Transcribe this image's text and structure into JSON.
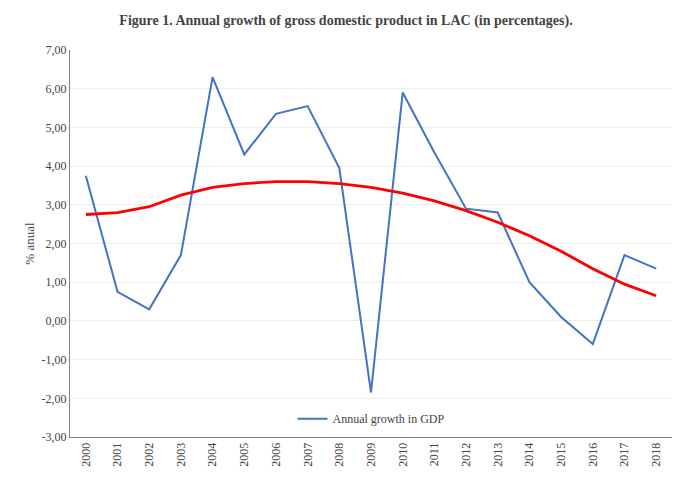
{
  "chart_data": {
    "type": "line",
    "title": "Figure 1. Annual growth of gross domestic product in LAC (in percentages).",
    "y_label": "% anual",
    "x": [
      2000,
      2001,
      2002,
      2003,
      2004,
      2005,
      2006,
      2007,
      2008,
      2009,
      2010,
      2011,
      2012,
      2013,
      2014,
      2015,
      2016,
      2017,
      2018
    ],
    "series": [
      {
        "name": "Annual growth in GDP",
        "color": "#4472C4",
        "values": [
          3.75,
          0.75,
          0.3,
          1.7,
          6.3,
          4.3,
          5.35,
          5.55,
          3.95,
          -1.85,
          5.9,
          4.35,
          2.9,
          2.8,
          1.0,
          0.1,
          -0.6,
          1.7,
          1.35
        ]
      },
      {
        "color": "#FF0000",
        "values": [
          2.75,
          2.8,
          2.95,
          3.25,
          3.45,
          3.55,
          3.6,
          3.6,
          3.55,
          3.45,
          3.3,
          3.1,
          2.85,
          2.55,
          2.2,
          1.8,
          1.35,
          0.95,
          0.65
        ]
      }
    ],
    "xlim": [
      1999.5,
      2018.5
    ],
    "xticks": [
      2000,
      2001,
      2002,
      2003,
      2004,
      2005,
      2006,
      2007,
      2008,
      2009,
      2010,
      2011,
      2012,
      2013,
      2014,
      2015,
      2016,
      2017,
      2018
    ],
    "ylim": [
      -3.0,
      7.0
    ],
    "yticks": [
      {
        "value": -3.0,
        "label": "-3,00"
      },
      {
        "value": -2.0,
        "label": "-2,00"
      },
      {
        "value": -1.0,
        "label": "-1,00"
      },
      {
        "value": 0.0,
        "label": "0,00"
      },
      {
        "value": 1.0,
        "label": "1,00"
      },
      {
        "value": 2.0,
        "label": "2,00"
      },
      {
        "value": 3.0,
        "label": "3,00"
      },
      {
        "value": 4.0,
        "label": "4,00"
      },
      {
        "value": 5.0,
        "label": "5,00"
      },
      {
        "value": 6.0,
        "label": "6,00"
      },
      {
        "value": 7.0,
        "label": "7,00"
      }
    ],
    "grid": "y",
    "legend": "lower center"
  }
}
